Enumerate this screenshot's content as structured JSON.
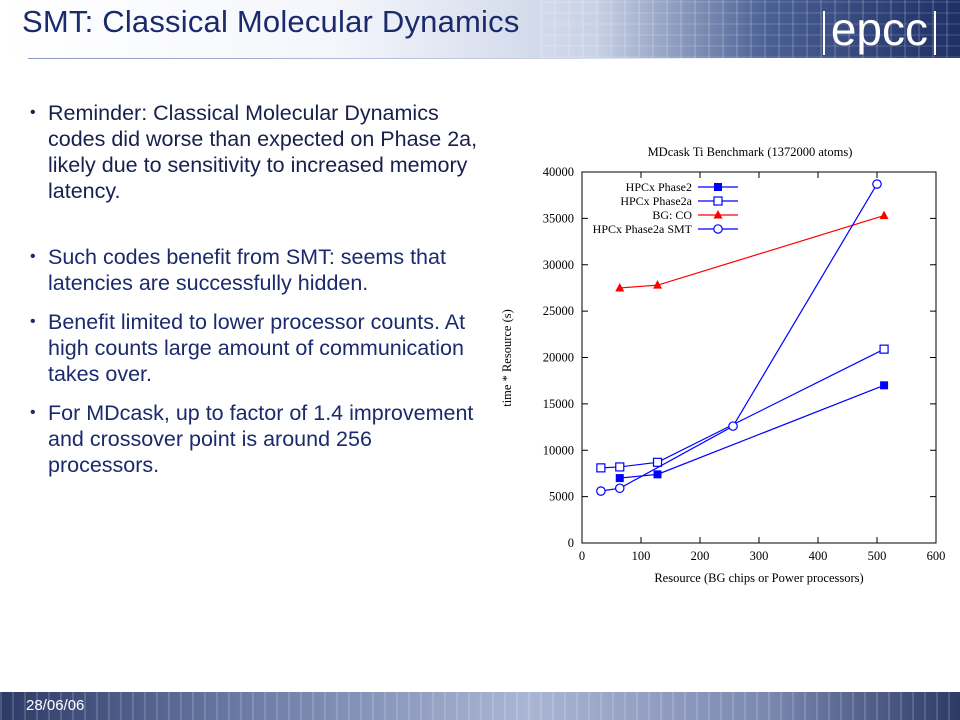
{
  "slide": {
    "title": "SMT: Classical Molecular Dynamics",
    "logo_text": "epcc",
    "date": "28/06/06"
  },
  "bullets": [
    "Reminder: Classical Molecular Dynamics codes did worse than expected on Phase 2a, likely due to sensitivity to increased memory latency.",
    "Such codes benefit from SMT: seems that latencies are successfully hidden.",
    "Benefit limited to lower processor counts. At high counts large amount of communication takes over.",
    "For MDcask, up to factor of 1.4 improvement and crossover point is around 256 processors."
  ],
  "chart_data": {
    "type": "line",
    "title": "MDcask Ti Benchmark (1372000 atoms)",
    "xlabel": "Resource (BG chips or Power processors)",
    "ylabel": "time * Resource (s)",
    "xlim": [
      0,
      600
    ],
    "ylim": [
      0,
      40000
    ],
    "xticks": [
      0,
      100,
      200,
      300,
      400,
      500,
      600
    ],
    "yticks": [
      0,
      5000,
      10000,
      15000,
      20000,
      25000,
      30000,
      35000,
      40000
    ],
    "grid": false,
    "legend_position": "top-left",
    "series": [
      {
        "name": "HPCx Phase2",
        "color": "#0000ff",
        "marker": "filled-square",
        "points": [
          [
            64,
            7000
          ],
          [
            128,
            7400
          ],
          [
            512,
            17000
          ]
        ]
      },
      {
        "name": "HPCx Phase2a",
        "color": "#0000ff",
        "marker": "open-square",
        "points": [
          [
            32,
            8100
          ],
          [
            64,
            8200
          ],
          [
            128,
            8700
          ],
          [
            512,
            20900
          ]
        ]
      },
      {
        "name": "BG: CO",
        "color": "#ff0000",
        "marker": "filled-triangle",
        "points": [
          [
            64,
            27500
          ],
          [
            128,
            27800
          ],
          [
            512,
            35300
          ]
        ]
      },
      {
        "name": "HPCx Phase2a SMT",
        "color": "#0000ff",
        "marker": "open-circle",
        "points": [
          [
            32,
            5600
          ],
          [
            64,
            5900
          ],
          [
            256,
            12600
          ],
          [
            500,
            38700
          ]
        ]
      }
    ]
  }
}
